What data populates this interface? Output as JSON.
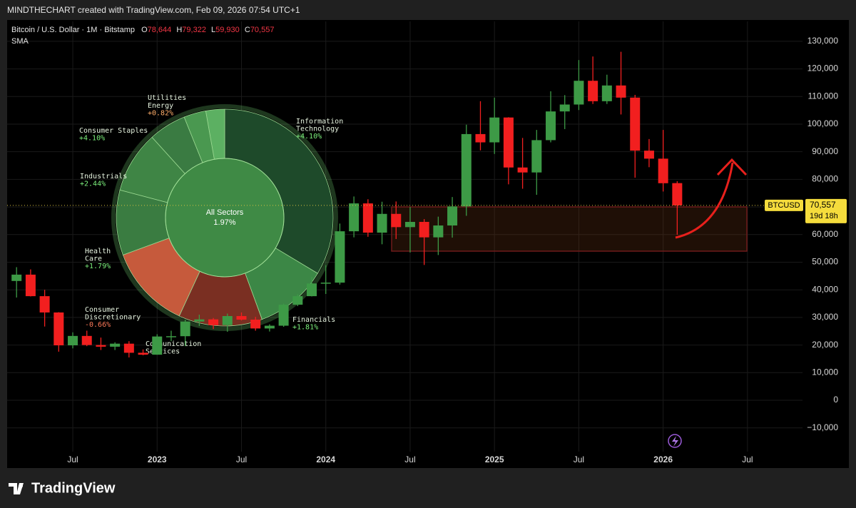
{
  "header": {
    "credit": "MINDTHECHART created with TradingView.com, Feb 09, 2026 07:54 UTC+1",
    "footer_logo": "TradingView"
  },
  "chart_data": [
    {
      "type": "candlestick",
      "title": "Bitcoin / U.S. Dollar · 1M · Bitstamp",
      "ohlc_legend": [
        {
          "key": "O",
          "value": "78,644"
        },
        {
          "key": "H",
          "value": "79,322"
        },
        {
          "key": "L",
          "value": "59,930"
        },
        {
          "key": "C",
          "value": "70,557"
        }
      ],
      "indicator": "SMA",
      "x": [
        "2022-03",
        "2022-04",
        "2022-05",
        "2022-06",
        "2022-07",
        "2022-08",
        "2022-09",
        "2022-10",
        "2022-11",
        "2022-12",
        "2023-01",
        "2023-02",
        "2023-03",
        "2023-04",
        "2023-05",
        "2023-06",
        "2023-07",
        "2023-08",
        "2023-09",
        "2023-10",
        "2023-11",
        "2023-12",
        "2024-01",
        "2024-02",
        "2024-03",
        "2024-04",
        "2024-05",
        "2024-06",
        "2024-07",
        "2024-08",
        "2024-09",
        "2024-10",
        "2024-11",
        "2024-12",
        "2025-01",
        "2025-02",
        "2025-03",
        "2025-04",
        "2025-05",
        "2025-06",
        "2025-07",
        "2025-08",
        "2025-09",
        "2025-10",
        "2025-11",
        "2025-12",
        "2026-01",
        "2026-02"
      ],
      "open": [
        43200,
        45500,
        37700,
        31800,
        19900,
        23300,
        20000,
        19400,
        20500,
        17200,
        16500,
        23100,
        23200,
        28500,
        29300,
        27200,
        30500,
        29200,
        26000,
        27000,
        34600,
        37700,
        42300,
        42600,
        61200,
        71300,
        60700,
        67500,
        62700,
        64600,
        59000,
        63300,
        70200,
        96400,
        93400,
        102400,
        84300,
        82500,
        94200,
        104600,
        107100,
        115700,
        108300,
        114000,
        109600,
        90400,
        87500,
        78644
      ],
      "high": [
        48200,
        47400,
        40000,
        31900,
        24600,
        25200,
        22700,
        21000,
        21400,
        18400,
        23900,
        25200,
        29200,
        31000,
        29800,
        31400,
        31800,
        30200,
        27500,
        35000,
        38400,
        44700,
        48900,
        64000,
        73800,
        72800,
        71900,
        72000,
        70000,
        65600,
        66500,
        73600,
        99800,
        108300,
        109600,
        102500,
        95000,
        97900,
        111900,
        110500,
        123200,
        124500,
        117900,
        126200,
        110600,
        94600,
        97900,
        79322
      ],
      "low": [
        37200,
        37600,
        26700,
        17600,
        18800,
        19600,
        18200,
        18200,
        15500,
        16300,
        16500,
        21400,
        19600,
        26900,
        25800,
        24800,
        28900,
        25200,
        24900,
        26600,
        34100,
        37600,
        38500,
        41900,
        59000,
        59200,
        56500,
        58400,
        53500,
        49000,
        52600,
        58900,
        66800,
        90500,
        89200,
        78200,
        76600,
        74400,
        93400,
        98200,
        105100,
        107300,
        107300,
        103500,
        80600,
        84400,
        75600,
        59930
      ],
      "close": [
        45500,
        37700,
        31800,
        19900,
        23300,
        20000,
        19400,
        20500,
        17200,
        16500,
        23100,
        23200,
        28500,
        29300,
        27200,
        30500,
        29200,
        26000,
        27000,
        34600,
        37700,
        42300,
        42600,
        61200,
        71300,
        60700,
        67500,
        62700,
        64600,
        59000,
        63300,
        70200,
        96400,
        93400,
        102400,
        84300,
        82500,
        94200,
        104600,
        107100,
        115700,
        108300,
        114000,
        109600,
        90400,
        87500,
        78600,
        70557
      ],
      "up_color": "#3d9a46",
      "down_color": "#f21f1f",
      "xlim": [
        "2022-02",
        "2026-10"
      ],
      "xticks": [
        {
          "value": "2022-07",
          "label": "Jul"
        },
        {
          "value": "2023-01",
          "label": "2023"
        },
        {
          "value": "2023-07",
          "label": "Jul"
        },
        {
          "value": "2024-01",
          "label": "2024"
        },
        {
          "value": "2024-07",
          "label": "Jul"
        },
        {
          "value": "2025-01",
          "label": "2025"
        },
        {
          "value": "2025-07",
          "label": "Jul"
        },
        {
          "value": "2026-01",
          "label": "2026"
        },
        {
          "value": "2026-07",
          "label": "Jul"
        }
      ],
      "ylim": [
        -18600,
        137200
      ],
      "yticks": [
        {
          "value": -10000,
          "label": "−10,000"
        },
        0,
        {
          "value": 10000,
          "label": "10,000"
        },
        {
          "value": 20000,
          "label": "20,000"
        },
        {
          "value": 30000,
          "label": "30,000"
        },
        {
          "value": 40000,
          "label": "40,000"
        },
        {
          "value": 50000,
          "label": "50,000"
        },
        {
          "value": 60000,
          "label": "60,000"
        },
        {
          "value": 70000,
          "label": "70,000"
        },
        {
          "value": 80000,
          "label": "80,000"
        },
        {
          "value": 90000,
          "label": "90,000"
        },
        {
          "value": 100000,
          "label": "100,000"
        },
        {
          "value": 110000,
          "label": "110,000"
        },
        {
          "value": 120000,
          "label": "120,000"
        },
        {
          "value": 130000,
          "label": "130,000"
        }
      ],
      "grid": true,
      "last_price": {
        "symbol": "BTCUSD",
        "value": 70557,
        "label": "70,557",
        "countdown": "19d 18h"
      }
    },
    {
      "type": "sunburst",
      "center_label": "All Sectors",
      "center_value": 1.97,
      "center_value_label": "1.97%",
      "categories": [
        [
          "Information",
          "Technology"
        ],
        [
          "Financials"
        ],
        [
          "Communication",
          "Services"
        ],
        [
          "Consumer",
          "Discretionary"
        ],
        [
          "Health",
          "Care"
        ],
        [
          "Industrials"
        ],
        [
          "Consumer Staples"
        ],
        [
          "Energy"
        ],
        [
          "Utilities"
        ]
      ],
      "weights": [
        33.6,
        10.8,
        12.5,
        12.5,
        9.7,
        9.2,
        5.6,
        3.3,
        2.8
      ],
      "values": [
        4.1,
        1.81,
        null,
        -0.66,
        1.79,
        2.44,
        4.1,
        0.82,
        null
      ],
      "value_labels": [
        "+4.10%",
        "+1.81%",
        null,
        "-0.66%",
        "+1.79%",
        "+2.44%",
        "+4.10%",
        "+0.82%",
        null
      ],
      "colors": [
        "#1e4a2a",
        "#3c8746",
        "#7a2f22",
        "#c65a3c",
        "#3a7c41",
        "#3f8545",
        "#3a7b42",
        "#4a9850",
        "#5cb062"
      ],
      "value_colors": [
        "#7cf07c",
        "#7cf07c",
        null,
        "#ff7a5a",
        "#7cf07c",
        "#7cf07c",
        "#7cf07c",
        "#ffae6a",
        null
      ]
    }
  ]
}
